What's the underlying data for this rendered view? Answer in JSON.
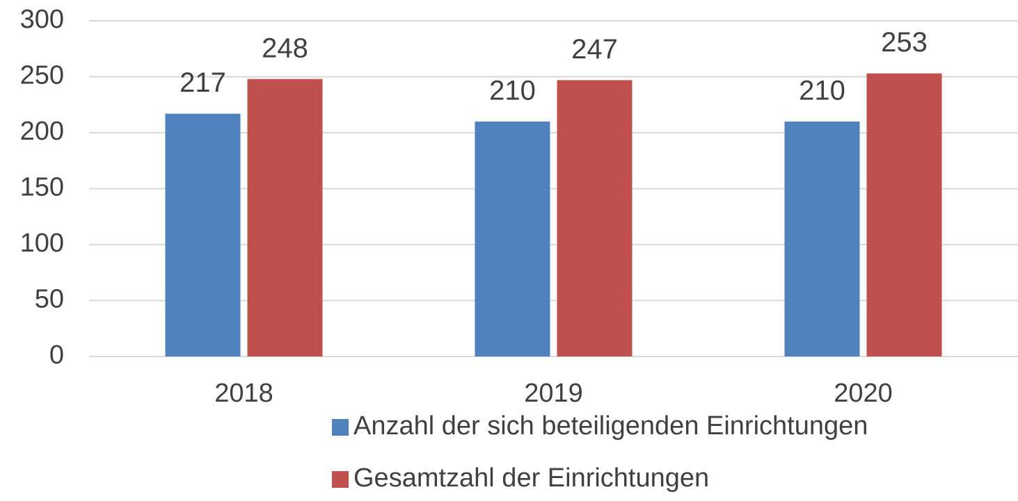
{
  "chart_data": {
    "type": "bar",
    "categories": [
      "2018",
      "2019",
      "2020"
    ],
    "series": [
      {
        "name": "Anzahl der sich beteiligenden Einrichtungen",
        "color": "#4f81bd",
        "values": [
          217,
          210,
          210
        ]
      },
      {
        "name": "Gesamtzahl der Einrichtungen",
        "color": "#c0504d",
        "values": [
          248,
          247,
          253
        ]
      }
    ],
    "ylim": [
      0,
      300
    ],
    "yticks": [
      0,
      50,
      100,
      150,
      200,
      250,
      300
    ],
    "grid": true,
    "legend": "bottom"
  }
}
